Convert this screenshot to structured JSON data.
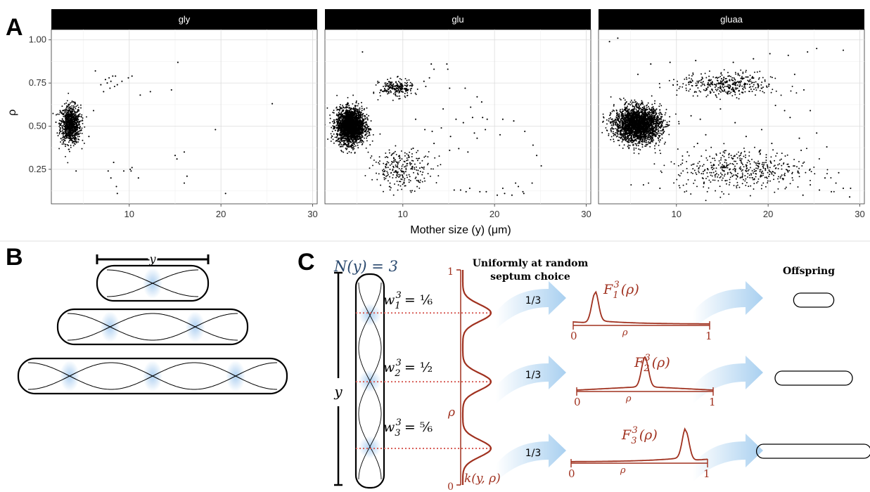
{
  "panel_labels": {
    "a": "A",
    "b": "B",
    "c": "C"
  },
  "colors": {
    "red": "#a0311f",
    "blue": "#2b4a6f",
    "arrow": "#a9d0f0",
    "septum": "#a9cdf0"
  },
  "chart_data": {
    "type": "scatter",
    "ylabel": "ρ",
    "xlabel": "Mother size (y) (μm)",
    "xlim": [
      1.5,
      30.5
    ],
    "ylim": [
      0.05,
      1.06
    ],
    "x_ticks": [
      10,
      20,
      30
    ],
    "x_tick_labels": [
      "10",
      "20",
      "30"
    ],
    "y_ticks": [
      0.25,
      0.5,
      0.75,
      1.0
    ],
    "y_tick_labels": [
      "0.25",
      "0.50",
      "0.75",
      "1.00"
    ],
    "grid": true,
    "facets": [
      {
        "name": "gly",
        "clusters": [
          {
            "cx": 3.6,
            "cy": 0.51,
            "sx": 0.55,
            "sy": 0.055,
            "n": 900
          }
        ],
        "points": [
          [
            4.2,
            0.24
          ],
          [
            6.3,
            0.82
          ],
          [
            6.9,
            0.74
          ],
          [
            7.2,
            0.7
          ],
          [
            7.4,
            0.77
          ],
          [
            7.6,
            0.75
          ],
          [
            7.8,
            0.78
          ],
          [
            7.9,
            0.72
          ],
          [
            8.0,
            0.76
          ],
          [
            8.2,
            0.79
          ],
          [
            8.4,
            0.73
          ],
          [
            8.5,
            0.79
          ],
          [
            8.7,
            0.74
          ],
          [
            9.2,
            0.76
          ],
          [
            9.9,
            0.78
          ],
          [
            10.3,
            0.79
          ],
          [
            11.2,
            0.68
          ],
          [
            12.3,
            0.7
          ],
          [
            14.6,
            0.71
          ],
          [
            15.3,
            0.87
          ],
          [
            8.3,
            0.29
          ],
          [
            7.7,
            0.24
          ],
          [
            8.0,
            0.2
          ],
          [
            8.6,
            0.15
          ],
          [
            8.7,
            0.11
          ],
          [
            9.4,
            0.24
          ],
          [
            10.1,
            0.25
          ],
          [
            10.2,
            0.24
          ],
          [
            10.3,
            0.26
          ],
          [
            11.0,
            0.2
          ],
          [
            15.0,
            0.33
          ],
          [
            15.2,
            0.31
          ],
          [
            16.0,
            0.35
          ],
          [
            16.3,
            0.21
          ],
          [
            16.0,
            0.17
          ],
          [
            19.4,
            0.48
          ],
          [
            20.5,
            0.11
          ],
          [
            25.6,
            0.63
          ],
          [
            5.6,
            0.44
          ],
          [
            6.1,
            0.59
          ]
        ]
      },
      {
        "name": "glu",
        "clusters": [
          {
            "cx": 4.3,
            "cy": 0.5,
            "sx": 0.75,
            "sy": 0.05,
            "n": 2400
          },
          {
            "cx": 9.3,
            "cy": 0.72,
            "sx": 0.9,
            "sy": 0.025,
            "n": 220
          },
          {
            "cx": 10.0,
            "cy": 0.25,
            "sx": 1.6,
            "sy": 0.055,
            "n": 260
          }
        ],
        "points": [
          [
            5.6,
            0.93
          ],
          [
            12.3,
            0.76
          ],
          [
            12.5,
            0.73
          ],
          [
            12.9,
            0.78
          ],
          [
            13.1,
            0.86
          ],
          [
            13.4,
            0.83
          ],
          [
            14.8,
            0.86
          ],
          [
            14.9,
            0.83
          ],
          [
            15.1,
            0.72
          ],
          [
            16.8,
            0.72
          ],
          [
            18.1,
            0.67
          ],
          [
            18.6,
            0.64
          ],
          [
            17.4,
            0.61
          ],
          [
            14.4,
            0.6
          ],
          [
            15.8,
            0.54
          ],
          [
            16.6,
            0.52
          ],
          [
            11.4,
            0.54
          ],
          [
            12.4,
            0.48
          ],
          [
            13.2,
            0.47
          ],
          [
            15.2,
            0.44
          ],
          [
            17.6,
            0.55
          ],
          [
            18.7,
            0.55
          ],
          [
            19.2,
            0.54
          ],
          [
            20.9,
            0.54
          ],
          [
            19.0,
            0.48
          ],
          [
            17.8,
            0.46
          ],
          [
            14.2,
            0.49
          ],
          [
            13.4,
            0.4
          ],
          [
            15.1,
            0.36
          ],
          [
            16.1,
            0.37
          ],
          [
            17.1,
            0.35
          ],
          [
            20.6,
            0.45
          ],
          [
            22.1,
            0.53
          ],
          [
            23.3,
            0.47
          ],
          [
            24.2,
            0.39
          ],
          [
            18.1,
            0.43
          ],
          [
            16.3,
            0.13
          ],
          [
            17.3,
            0.14
          ],
          [
            18.4,
            0.12
          ],
          [
            19.1,
            0.12
          ],
          [
            20.3,
            0.1
          ],
          [
            21.1,
            0.11
          ],
          [
            21.9,
            0.1
          ],
          [
            23.1,
            0.12
          ],
          [
            23.2,
            0.11
          ],
          [
            24.1,
            0.17
          ],
          [
            24.6,
            0.33
          ],
          [
            25.1,
            0.27
          ],
          [
            22.3,
            0.17
          ],
          [
            20.9,
            0.14
          ],
          [
            22.6,
            0.15
          ],
          [
            15.6,
            0.13
          ],
          [
            16.9,
            0.12
          ]
        ]
      },
      {
        "name": "gluaa",
        "clusters": [
          {
            "cx": 5.8,
            "cy": 0.51,
            "sx": 1.25,
            "sy": 0.05,
            "n": 2600
          },
          {
            "cx": 15.5,
            "cy": 0.74,
            "sx": 2.5,
            "sy": 0.035,
            "n": 380
          },
          {
            "cx": 17.0,
            "cy": 0.25,
            "sx": 3.6,
            "sy": 0.06,
            "n": 480
          }
        ],
        "points": [
          [
            2.7,
            0.99
          ],
          [
            3.6,
            1.01
          ],
          [
            5.8,
            0.8
          ],
          [
            7.2,
            0.86
          ],
          [
            9.3,
            0.87
          ],
          [
            10.1,
            0.74
          ],
          [
            12.1,
            0.88
          ],
          [
            16.2,
            0.87
          ],
          [
            18.4,
            0.89
          ],
          [
            20.2,
            0.92
          ],
          [
            22.2,
            0.91
          ],
          [
            24.3,
            0.93
          ],
          [
            25.3,
            0.95
          ],
          [
            28.2,
            0.94
          ],
          [
            22.9,
            0.8
          ],
          [
            23.9,
            0.71
          ],
          [
            20.8,
            0.62
          ],
          [
            21.8,
            0.59
          ],
          [
            24.6,
            0.59
          ],
          [
            22.4,
            0.55
          ],
          [
            19.3,
            0.48
          ],
          [
            17.6,
            0.44
          ],
          [
            16.4,
            0.52
          ],
          [
            20.4,
            0.4
          ],
          [
            23.4,
            0.43
          ],
          [
            25.3,
            0.46
          ],
          [
            26.4,
            0.38
          ],
          [
            23.6,
            0.36
          ],
          [
            11.6,
            0.56
          ],
          [
            12.6,
            0.54
          ],
          [
            14.8,
            0.6
          ],
          [
            13.2,
            0.45
          ],
          [
            12.3,
            0.4
          ],
          [
            11.2,
            0.35
          ],
          [
            6.4,
            0.16
          ],
          [
            8.2,
            0.14
          ],
          [
            28.9,
            0.09
          ],
          [
            28.2,
            0.14
          ],
          [
            27.4,
            0.17
          ],
          [
            26.9,
            0.12
          ],
          [
            25.6,
            0.13
          ],
          [
            24.6,
            0.16
          ],
          [
            23.8,
            0.1
          ],
          [
            26.2,
            0.2
          ],
          [
            27.7,
            0.23
          ],
          [
            29.0,
            0.14
          ]
        ]
      }
    ]
  },
  "panel_b": {
    "length_label": "y",
    "cells": [
      {
        "units": 1
      },
      {
        "units": 2
      },
      {
        "units": 3
      }
    ]
  },
  "panel_c": {
    "title_left": "N(y) = 3",
    "y_label": "y",
    "uniform_line1": "Uniformly at random",
    "uniform_line2": "septum choice",
    "offspring_label": "Offspring",
    "axis_top": "1",
    "axis_bottom": "0",
    "rho_label": "ρ",
    "kernel_label": "k(y, ρ)",
    "weights": [
      {
        "lhs": "w",
        "sub": "1",
        "sup": "3",
        "rhs": "= ⅙"
      },
      {
        "lhs": "w",
        "sub": "2",
        "sup": "3",
        "rhs": "= ½"
      },
      {
        "lhs": "w",
        "sub": "3",
        "sup": "3",
        "rhs": "= ⅚"
      }
    ],
    "arrow_prob": [
      "1/3",
      "1/3",
      "1/3"
    ],
    "dist": [
      {
        "F": "F",
        "sub": "1",
        "sup": "3",
        "arg": "(ρ)",
        "peak": 0.16,
        "zero": "0",
        "one": "1",
        "rho": "ρ"
      },
      {
        "F": "F",
        "sub": "2",
        "sup": "3",
        "arg": "(ρ)",
        "peak": 0.5,
        "zero": "0",
        "one": "1",
        "rho": "ρ"
      },
      {
        "F": "F",
        "sub": "3",
        "sup": "3",
        "arg": "(ρ)",
        "peak": 0.84,
        "zero": "0",
        "one": "1",
        "rho": "ρ"
      }
    ],
    "offspring_sizes": [
      0.17,
      0.5,
      0.83
    ]
  }
}
